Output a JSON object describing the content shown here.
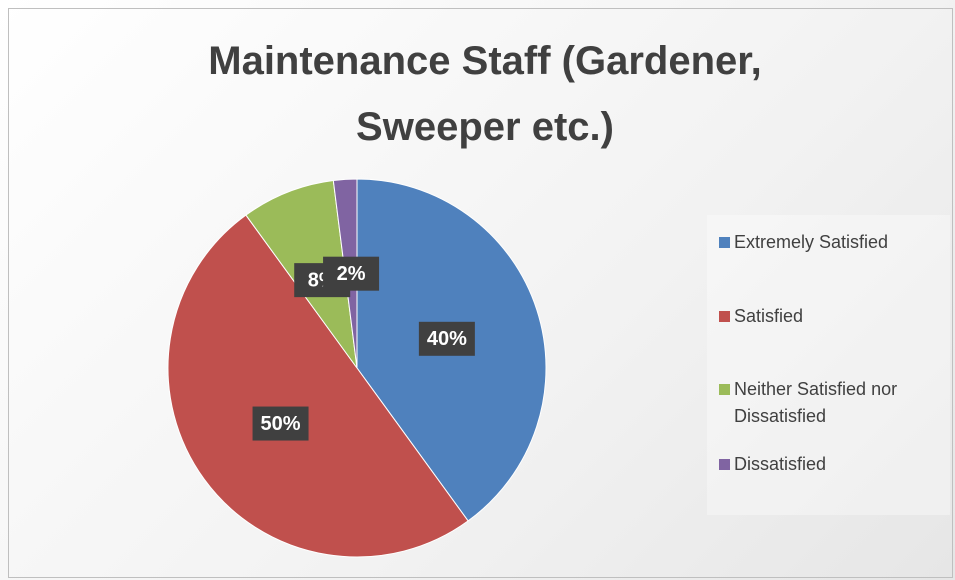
{
  "chart_data": {
    "type": "pie",
    "title": "Maintenance Staff (Gardener, Sweeper etc.)",
    "categories": [
      "Extremely Satisfied",
      "Satisfied",
      "Neither Satisfied nor Dissatisfied",
      "Dissatisfied"
    ],
    "values": [
      40,
      50,
      8,
      2
    ],
    "value_labels": [
      "40%",
      "50%",
      "8%",
      "2%"
    ],
    "colors": [
      "#4f81bd",
      "#c0504d",
      "#9bbb59",
      "#8064a2"
    ],
    "legend": "right"
  }
}
